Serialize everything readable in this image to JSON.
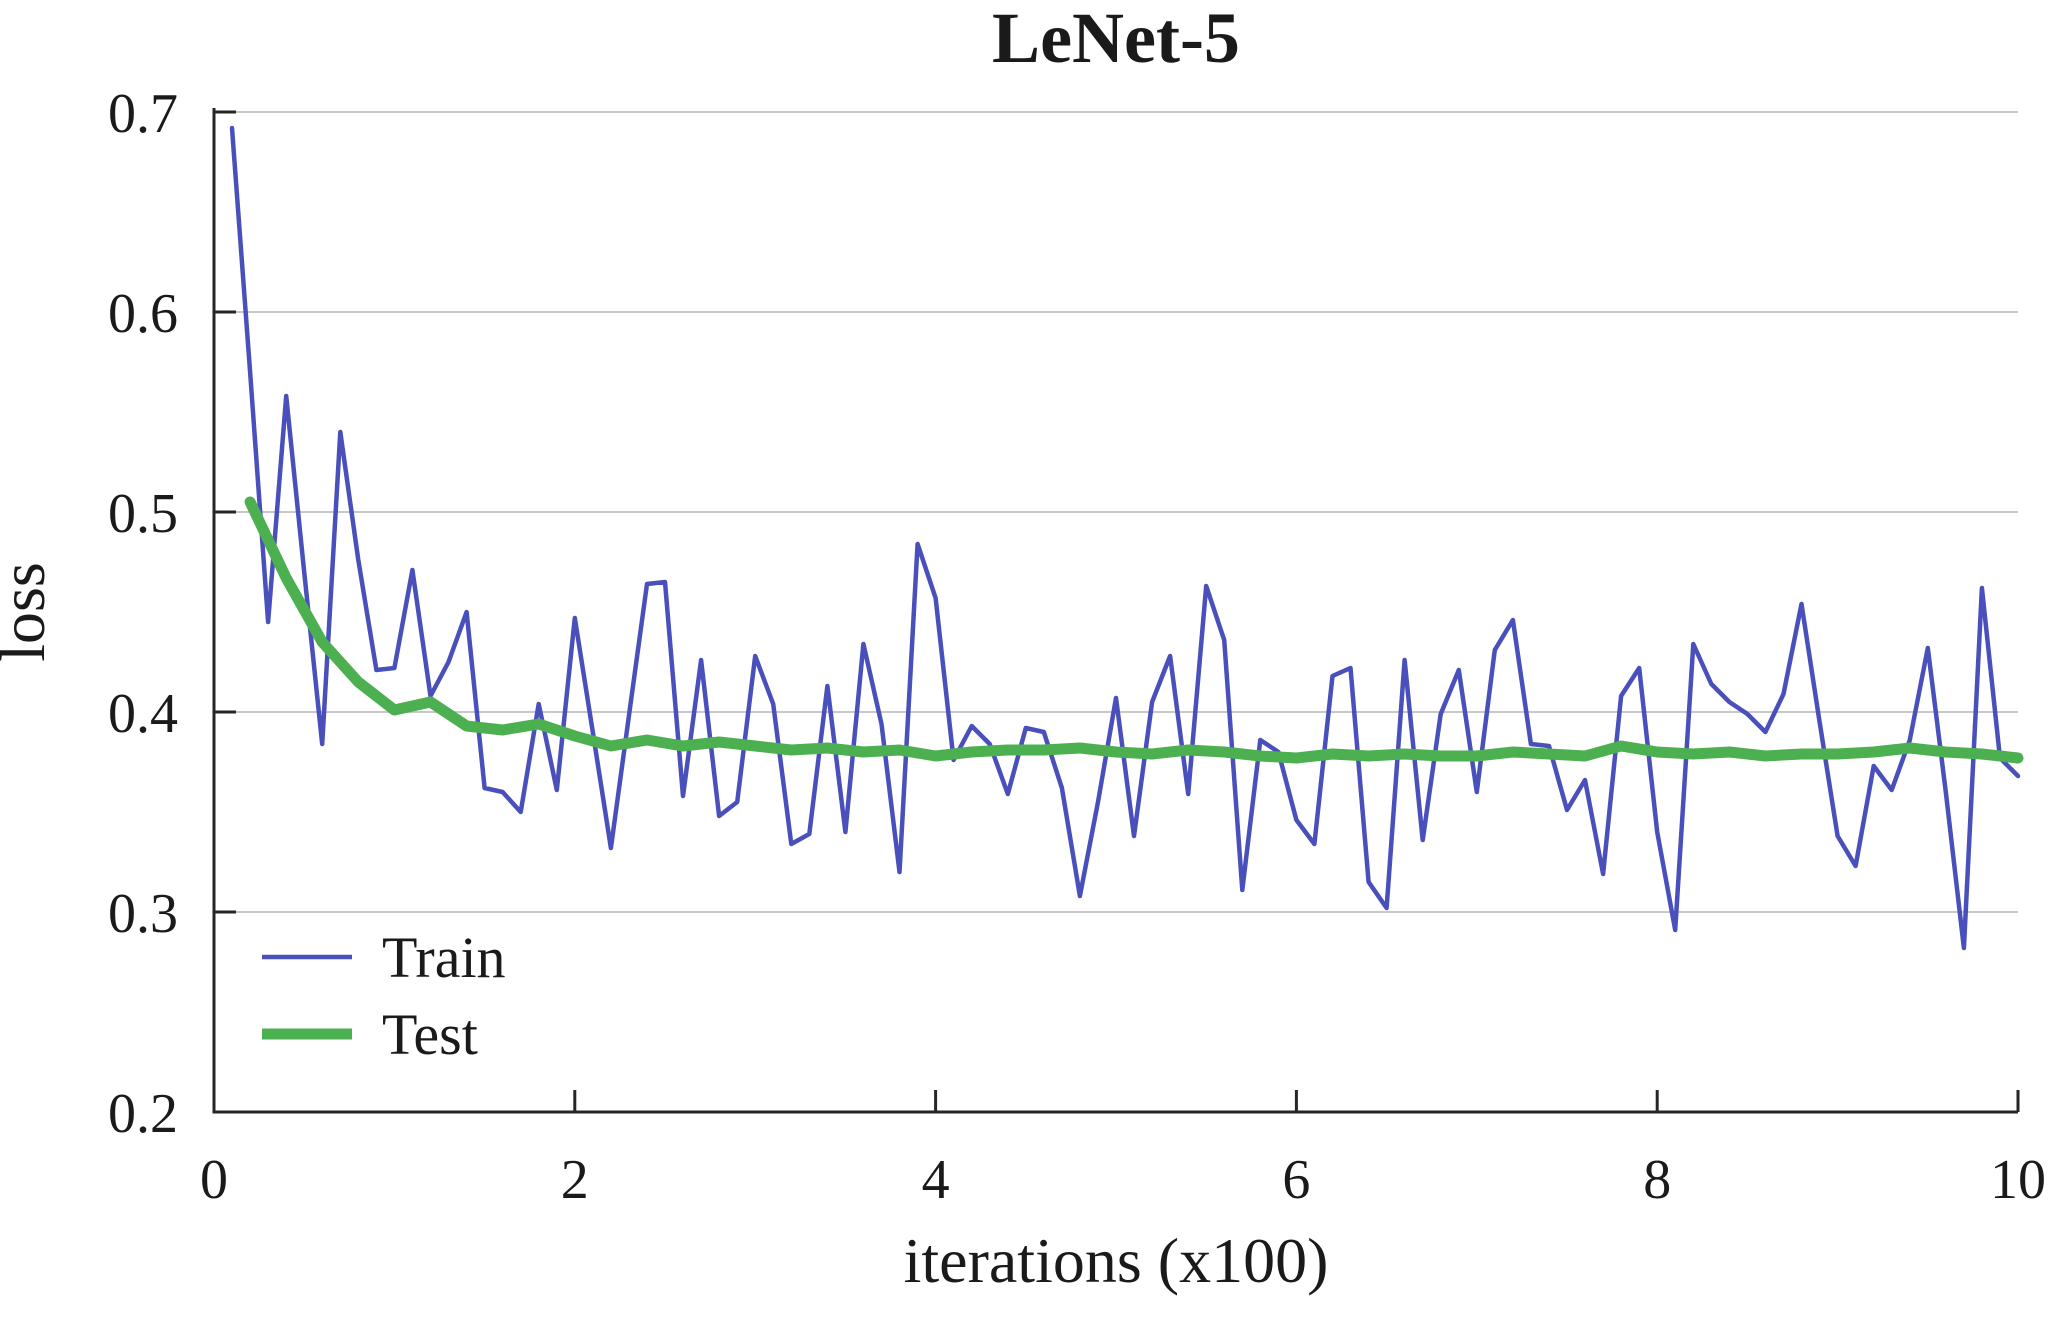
{
  "chart_data": {
    "type": "line",
    "title": "LeNet-5",
    "xlabel": "iterations (x100)",
    "ylabel": "loss",
    "xlim": [
      0,
      10
    ],
    "ylim": [
      0.2,
      0.7
    ],
    "grid": "horizontal",
    "legend_position": "lower-left-inside",
    "x_ticks": {
      "values": [
        0,
        2,
        4,
        6,
        8,
        10
      ],
      "labels": [
        "0",
        "2",
        "4",
        "6",
        "8",
        "10"
      ]
    },
    "y_ticks": {
      "values": [
        0.2,
        0.3,
        0.4,
        0.5,
        0.6,
        0.7
      ],
      "labels": [
        "0.2",
        "0.3",
        "0.4",
        "0.5",
        "0.6",
        "0.7"
      ]
    },
    "series": [
      {
        "name": "Train",
        "color": "#4950bb",
        "points": [
          [
            0.1,
            0.692
          ],
          [
            0.2,
            0.57
          ],
          [
            0.3,
            0.445
          ],
          [
            0.4,
            0.558
          ],
          [
            0.5,
            0.47
          ],
          [
            0.6,
            0.384
          ],
          [
            0.7,
            0.54
          ],
          [
            0.8,
            0.476
          ],
          [
            0.9,
            0.421
          ],
          [
            1.0,
            0.422
          ],
          [
            1.1,
            0.471
          ],
          [
            1.2,
            0.408
          ],
          [
            1.3,
            0.425
          ],
          [
            1.4,
            0.45
          ],
          [
            1.5,
            0.362
          ],
          [
            1.6,
            0.36
          ],
          [
            1.7,
            0.35
          ],
          [
            1.8,
            0.404
          ],
          [
            1.9,
            0.361
          ],
          [
            2.0,
            0.447
          ],
          [
            2.1,
            0.39
          ],
          [
            2.2,
            0.332
          ],
          [
            2.3,
            0.398
          ],
          [
            2.4,
            0.464
          ],
          [
            2.5,
            0.465
          ],
          [
            2.6,
            0.358
          ],
          [
            2.7,
            0.426
          ],
          [
            2.8,
            0.348
          ],
          [
            2.9,
            0.355
          ],
          [
            3.0,
            0.428
          ],
          [
            3.1,
            0.404
          ],
          [
            3.2,
            0.334
          ],
          [
            3.3,
            0.339
          ],
          [
            3.4,
            0.413
          ],
          [
            3.5,
            0.34
          ],
          [
            3.6,
            0.434
          ],
          [
            3.7,
            0.394
          ],
          [
            3.8,
            0.32
          ],
          [
            3.9,
            0.484
          ],
          [
            4.0,
            0.457
          ],
          [
            4.1,
            0.376
          ],
          [
            4.2,
            0.393
          ],
          [
            4.3,
            0.384
          ],
          [
            4.4,
            0.359
          ],
          [
            4.5,
            0.392
          ],
          [
            4.6,
            0.39
          ],
          [
            4.7,
            0.362
          ],
          [
            4.8,
            0.308
          ],
          [
            4.9,
            0.355
          ],
          [
            5.0,
            0.407
          ],
          [
            5.1,
            0.338
          ],
          [
            5.2,
            0.405
          ],
          [
            5.3,
            0.428
          ],
          [
            5.4,
            0.359
          ],
          [
            5.5,
            0.463
          ],
          [
            5.6,
            0.436
          ],
          [
            5.7,
            0.311
          ],
          [
            5.8,
            0.386
          ],
          [
            5.9,
            0.38
          ],
          [
            6.0,
            0.346
          ],
          [
            6.1,
            0.334
          ],
          [
            6.2,
            0.418
          ],
          [
            6.3,
            0.422
          ],
          [
            6.4,
            0.315
          ],
          [
            6.5,
            0.302
          ],
          [
            6.6,
            0.426
          ],
          [
            6.7,
            0.336
          ],
          [
            6.8,
            0.399
          ],
          [
            6.9,
            0.421
          ],
          [
            7.0,
            0.36
          ],
          [
            7.1,
            0.431
          ],
          [
            7.2,
            0.446
          ],
          [
            7.3,
            0.384
          ],
          [
            7.4,
            0.383
          ],
          [
            7.5,
            0.351
          ],
          [
            7.6,
            0.366
          ],
          [
            7.7,
            0.319
          ],
          [
            7.8,
            0.408
          ],
          [
            7.9,
            0.422
          ],
          [
            8.0,
            0.34
          ],
          [
            8.1,
            0.291
          ],
          [
            8.2,
            0.434
          ],
          [
            8.3,
            0.414
          ],
          [
            8.4,
            0.405
          ],
          [
            8.5,
            0.399
          ],
          [
            8.6,
            0.39
          ],
          [
            8.7,
            0.409
          ],
          [
            8.8,
            0.454
          ],
          [
            8.9,
            0.395
          ],
          [
            9.0,
            0.338
          ],
          [
            9.1,
            0.323
          ],
          [
            9.2,
            0.373
          ],
          [
            9.3,
            0.361
          ],
          [
            9.4,
            0.386
          ],
          [
            9.5,
            0.432
          ],
          [
            9.6,
            0.36
          ],
          [
            9.7,
            0.282
          ],
          [
            9.8,
            0.462
          ],
          [
            9.9,
            0.377
          ],
          [
            10.0,
            0.368
          ]
        ]
      },
      {
        "name": "Test",
        "color": "#4caf50",
        "points": [
          [
            0.2,
            0.505
          ],
          [
            0.4,
            0.467
          ],
          [
            0.6,
            0.435
          ],
          [
            0.8,
            0.415
          ],
          [
            1.0,
            0.401
          ],
          [
            1.2,
            0.405
          ],
          [
            1.4,
            0.393
          ],
          [
            1.6,
            0.391
          ],
          [
            1.8,
            0.394
          ],
          [
            2.0,
            0.388
          ],
          [
            2.2,
            0.383
          ],
          [
            2.4,
            0.386
          ],
          [
            2.6,
            0.383
          ],
          [
            2.8,
            0.385
          ],
          [
            3.0,
            0.383
          ],
          [
            3.2,
            0.381
          ],
          [
            3.4,
            0.382
          ],
          [
            3.6,
            0.38
          ],
          [
            3.8,
            0.381
          ],
          [
            4.0,
            0.378
          ],
          [
            4.2,
            0.38
          ],
          [
            4.4,
            0.381
          ],
          [
            4.6,
            0.381
          ],
          [
            4.8,
            0.382
          ],
          [
            5.0,
            0.38
          ],
          [
            5.2,
            0.379
          ],
          [
            5.4,
            0.381
          ],
          [
            5.6,
            0.38
          ],
          [
            5.8,
            0.378
          ],
          [
            6.0,
            0.377
          ],
          [
            6.2,
            0.379
          ],
          [
            6.4,
            0.378
          ],
          [
            6.6,
            0.379
          ],
          [
            6.8,
            0.378
          ],
          [
            7.0,
            0.378
          ],
          [
            7.2,
            0.38
          ],
          [
            7.4,
            0.379
          ],
          [
            7.6,
            0.378
          ],
          [
            7.8,
            0.383
          ],
          [
            8.0,
            0.38
          ],
          [
            8.2,
            0.379
          ],
          [
            8.4,
            0.38
          ],
          [
            8.6,
            0.378
          ],
          [
            8.8,
            0.379
          ],
          [
            9.0,
            0.379
          ],
          [
            9.2,
            0.38
          ],
          [
            9.4,
            0.382
          ],
          [
            9.6,
            0.38
          ],
          [
            9.8,
            0.379
          ],
          [
            10.0,
            0.377
          ]
        ]
      }
    ]
  },
  "colors": {
    "background": "#ffffff",
    "grid": "#c8c8c8",
    "axis": "#262626",
    "text": "#1a1a1a"
  }
}
